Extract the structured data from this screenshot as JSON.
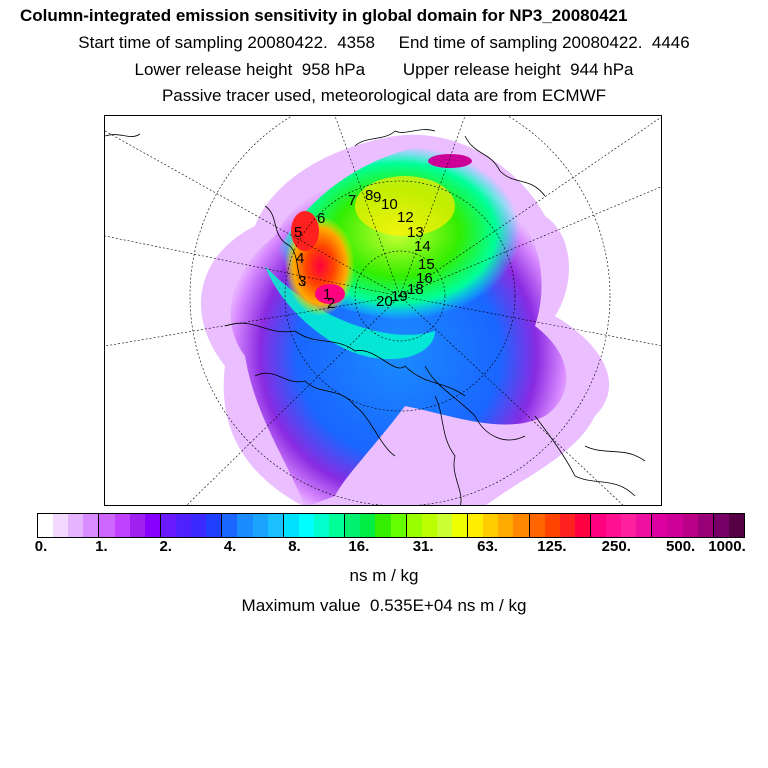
{
  "header": {
    "title": "Column-integrated emission sensitivity in global domain for NP3_20080421",
    "sampling_line": "Start time of sampling 20080422.  4358     End time of sampling 20080422.  4446",
    "height_line": "Lower release height  958 hPa        Upper release height  944 hPa",
    "tracer_line": "Passive tracer used, meteorological data are from ECMWF"
  },
  "map": {
    "trajectory_labels": [
      "1",
      "2",
      "3",
      "4",
      "5",
      "6",
      "7",
      "8",
      "9",
      "10",
      "12",
      "13",
      "14",
      "15",
      "16",
      "18",
      "19",
      "20"
    ]
  },
  "colorbar": {
    "ticks": [
      "0.",
      "1.",
      "2.",
      "4.",
      "8.",
      "16.",
      "31.",
      "63.",
      "125.",
      "250.",
      "500.",
      "1000."
    ],
    "colors": [
      "#ffffff",
      "#f3d9ff",
      "#e6b3ff",
      "#d98cff",
      "#cc66ff",
      "#bf40ff",
      "#a020f0",
      "#8800ff",
      "#6a1aff",
      "#5020ff",
      "#3a2aff",
      "#2040ff",
      "#1a66ff",
      "#1a8cff",
      "#1aa3ff",
      "#1ac0ff",
      "#00e0ff",
      "#00ffff",
      "#00ffcc",
      "#00ff99",
      "#00f070",
      "#00ee44",
      "#33ee00",
      "#66ff00",
      "#99ff00",
      "#bbff00",
      "#ccff33",
      "#eeff00",
      "#ffee00",
      "#ffcc00",
      "#ffaa00",
      "#ff8800",
      "#ff6600",
      "#ff4400",
      "#ff2020",
      "#ff0040",
      "#ff0080",
      "#ff1090",
      "#ff20a0",
      "#ee10a0",
      "#dd00a0",
      "#cc0099",
      "#bb0088",
      "#990077",
      "#770066",
      "#550044"
    ],
    "unit_label": "ns m / kg"
  },
  "footer": {
    "max_value_line": "Maximum value  0.535E+04 ns m / kg"
  }
}
